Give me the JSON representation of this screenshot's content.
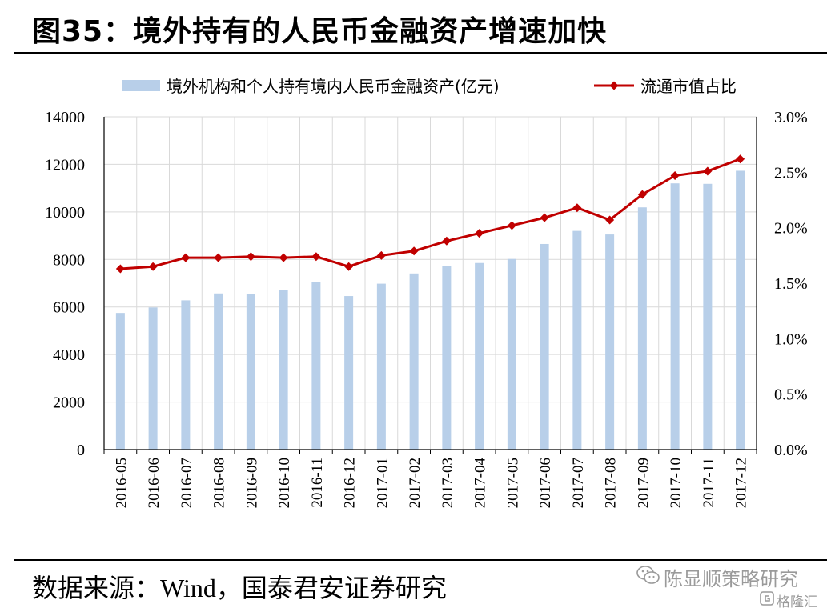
{
  "title": "图35：境外持有的人民币金融资产增速加快",
  "source": {
    "prefix": "数据来源：",
    "wind": "Wind",
    "suffix": "，国泰君安证券研究"
  },
  "watermark": {
    "account": "陈显顺策略研究",
    "site": "格隆汇",
    "icon": "wechat-icon",
    "logo_icon": "gelonghui-logo-icon"
  },
  "colors": {
    "bar": "#b8cfe9",
    "line": "#c00000",
    "grid": "#d9d9d9"
  },
  "chart_data": {
    "type": "bar",
    "categories": [
      "2016-05",
      "2016-06",
      "2016-07",
      "2016-08",
      "2016-09",
      "2016-10",
      "2016-11",
      "2016-12",
      "2017-01",
      "2017-02",
      "2017-03",
      "2017-04",
      "2017-05",
      "2017-06",
      "2017-07",
      "2017-08",
      "2017-09",
      "2017-10",
      "2017-11",
      "2017-12"
    ],
    "series": [
      {
        "name": "境外机构和个人持有境内人民币金融资产(亿元)",
        "type": "bar",
        "axis": "left",
        "values": [
          5750,
          5980,
          6280,
          6570,
          6530,
          6700,
          7060,
          6460,
          6980,
          7410,
          7740,
          7850,
          8020,
          8650,
          9200,
          9050,
          10190,
          11200,
          11180,
          11730
        ]
      },
      {
        "name": "流通市值占比",
        "type": "line",
        "axis": "right",
        "values": [
          1.63,
          1.65,
          1.73,
          1.73,
          1.74,
          1.73,
          1.74,
          1.65,
          1.75,
          1.79,
          1.88,
          1.95,
          2.02,
          2.09,
          2.18,
          2.07,
          2.3,
          2.47,
          2.51,
          2.62
        ]
      }
    ],
    "y_left": {
      "ylim": [
        0,
        14000
      ],
      "ticks": [
        0,
        2000,
        4000,
        6000,
        8000,
        10000,
        12000,
        14000
      ],
      "tick_labels": [
        "0",
        "2000",
        "4000",
        "6000",
        "8000",
        "10000",
        "12000",
        "14000"
      ]
    },
    "y_right": {
      "ylim": [
        0,
        3.0
      ],
      "ticks": [
        0,
        0.5,
        1.0,
        1.5,
        2.0,
        2.5,
        3.0
      ],
      "tick_labels": [
        "0.0%",
        "0.5%",
        "1.0%",
        "1.5%",
        "2.0%",
        "2.5%",
        "3.0%"
      ]
    },
    "grid": true,
    "legend_position": "top"
  }
}
